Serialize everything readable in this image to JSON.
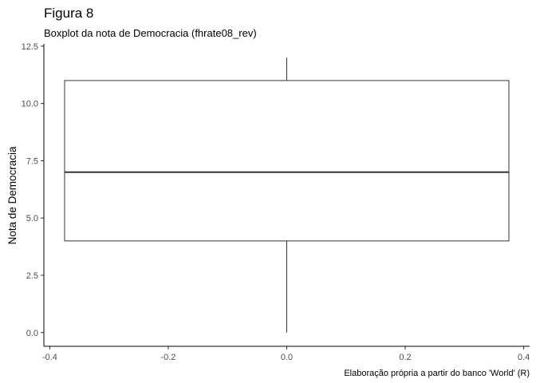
{
  "chart_data": {
    "type": "boxplot",
    "title": "Figura 8",
    "subtitle": "Boxplot da nota de Democracia (fhrate08_rev)",
    "xlabel": "",
    "ylabel": "Nota de Democracia",
    "caption": "Elaboração própria a partir do banco 'World' (R)",
    "xlim": [
      -0.41,
      0.41
    ],
    "ylim": [
      -0.6,
      12.6
    ],
    "x_ticks": [
      -0.4,
      -0.2,
      0.0,
      0.2,
      0.4
    ],
    "x_tick_labels": [
      "-0.4",
      "-0.2",
      "0.0",
      "0.2",
      "0.4"
    ],
    "y_ticks": [
      0.0,
      2.5,
      5.0,
      7.5,
      10.0,
      12.5
    ],
    "y_tick_labels": [
      "0.0",
      "2.5",
      "5.0",
      "7.5",
      "10.0",
      "12.5"
    ],
    "box": {
      "x_center": 0.0,
      "x_left": -0.375,
      "x_right": 0.375,
      "min": 0.0,
      "q1": 4.0,
      "median": 7.0,
      "q3": 11.0,
      "max": 12.0
    },
    "grid": false,
    "theme": "classic"
  }
}
